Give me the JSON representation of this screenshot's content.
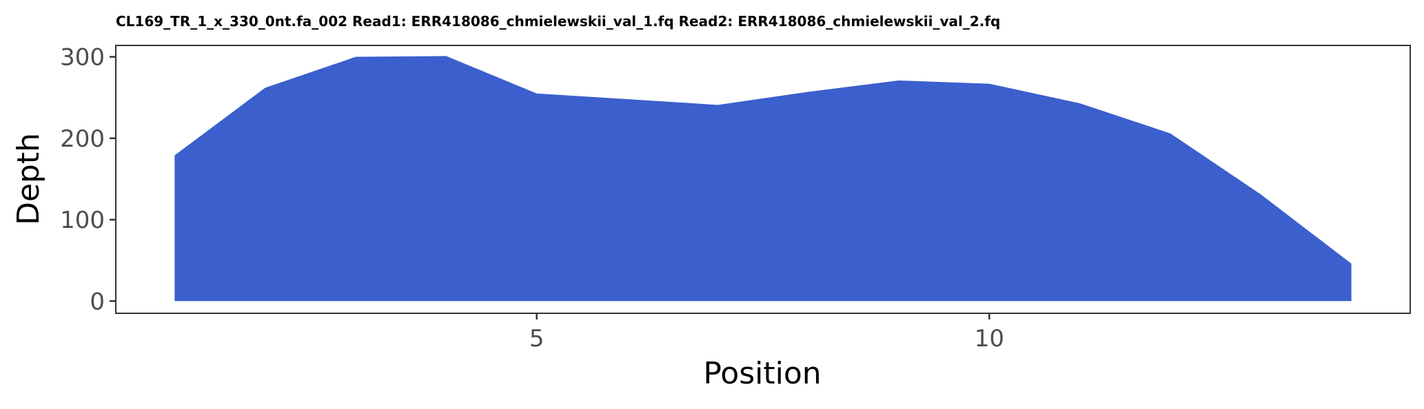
{
  "chart_data": {
    "type": "area",
    "title": "CL169_TR_1_x_330_0nt.fa_002 Read1: ERR418086_chmielewskii_val_1.fq Read2: ERR418086_chmielewskii_val_2.fq",
    "xlabel": "Position",
    "ylabel": "Depth",
    "x": [
      1,
      2,
      3,
      4,
      5,
      6,
      7,
      8,
      9,
      10,
      11,
      12,
      13,
      14
    ],
    "values": [
      179,
      262,
      300,
      301,
      255,
      248,
      241,
      257,
      271,
      267,
      243,
      206,
      131,
      46
    ],
    "xlim": [
      0.35,
      14.65
    ],
    "ylim": [
      -15,
      314
    ],
    "x_ticks": [
      5,
      10
    ],
    "y_ticks": [
      0,
      100,
      200,
      300
    ],
    "grid": false,
    "fill_color": "#3b5fcd"
  }
}
